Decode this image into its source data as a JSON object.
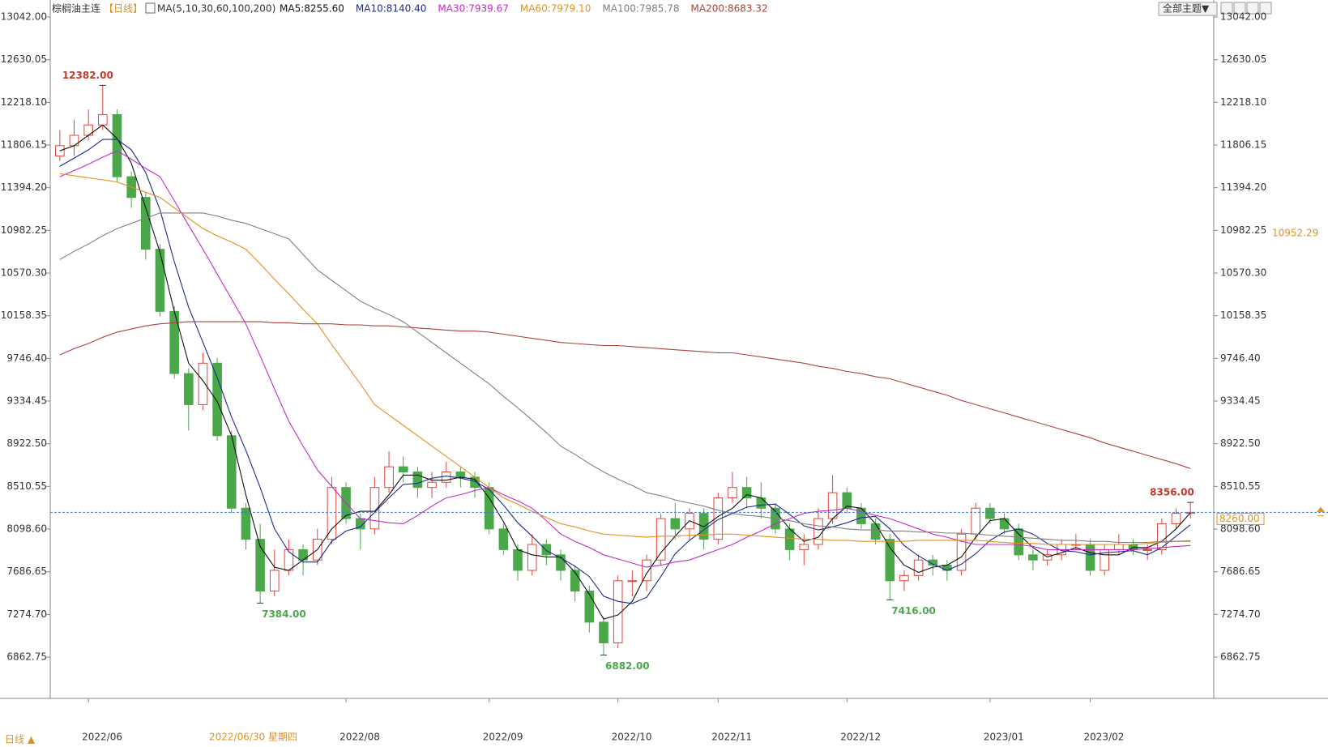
{
  "chart_data": {
    "type": "candlestick",
    "title": "棕榈油主连",
    "period": "【日线】",
    "indicator": "MA(5,10,30,60,100,200)",
    "categories": [
      null,
      null,
      "2022/06",
      null,
      null,
      null,
      null,
      null,
      null,
      null,
      null,
      null,
      null,
      null,
      null,
      null,
      null,
      null,
      null,
      null,
      "2022/08",
      null,
      null,
      null,
      null,
      null,
      null,
      null,
      null,
      null,
      "2022/09",
      null,
      null,
      null,
      null,
      null,
      null,
      null,
      null,
      "2022/10",
      null,
      null,
      null,
      null,
      null,
      null,
      "2022/11",
      null,
      null,
      null,
      null,
      null,
      null,
      null,
      null,
      "2022/12",
      null,
      null,
      null,
      null,
      null,
      null,
      null,
      null,
      null,
      "2023/01",
      null,
      null,
      null,
      null,
      null,
      null,
      "2023/02",
      null,
      null,
      null,
      null,
      null,
      null,
      null
    ],
    "open": [
      11700,
      11800,
      11900,
      12000,
      12100,
      11500,
      11300,
      10800,
      10200,
      9600,
      9300,
      9700,
      9000,
      8300,
      8000,
      7500,
      7700,
      7900,
      7800,
      8000,
      8500,
      8200,
      8100,
      8500,
      8700,
      8650,
      8500,
      8550,
      8650,
      8600,
      8500,
      8100,
      7900,
      7700,
      7950,
      7850,
      7700,
      7500,
      7200,
      7000,
      7600,
      7600,
      7800,
      8200,
      8100,
      8250,
      8000,
      8400,
      8500,
      8400,
      8300,
      8100,
      7900,
      7950,
      8200,
      8450,
      8300,
      8150,
      8000,
      7600,
      7650,
      7800,
      7750,
      7700,
      8050,
      8300,
      8200,
      8100,
      7850,
      7800,
      7850,
      7950,
      7950,
      7700,
      7900,
      7950,
      7900,
      7900,
      8150,
      8250
    ],
    "high": [
      11950,
      12050,
      12150,
      12382,
      12150,
      11550,
      11350,
      10850,
      10250,
      9650,
      9800,
      9750,
      9050,
      8350,
      8150,
      7900,
      8000,
      7950,
      8100,
      8600,
      8550,
      8250,
      8600,
      8850,
      8800,
      8700,
      8650,
      8750,
      8700,
      8650,
      8550,
      8150,
      7950,
      8050,
      8000,
      7900,
      7750,
      7550,
      7250,
      7650,
      7700,
      7850,
      8250,
      8350,
      8300,
      8300,
      8450,
      8650,
      8600,
      8550,
      8350,
      8150,
      8050,
      8300,
      8620,
      8500,
      8350,
      8200,
      8050,
      7700,
      7850,
      7850,
      7800,
      8100,
      8350,
      8350,
      8250,
      8150,
      7900,
      7900,
      8000,
      8050,
      8000,
      7950,
      8050,
      8000,
      7950,
      8200,
      8300,
      8356
    ],
    "low": [
      11650,
      11700,
      11850,
      11950,
      11450,
      11200,
      10700,
      10150,
      9550,
      9050,
      9250,
      8950,
      8250,
      7900,
      7384,
      7450,
      7650,
      7650,
      7750,
      7950,
      8150,
      7900,
      8050,
      8450,
      8550,
      8400,
      8400,
      8500,
      8500,
      8400,
      8050,
      7850,
      7600,
      7650,
      7750,
      7600,
      7400,
      7100,
      6882,
      6950,
      7450,
      7500,
      7750,
      8000,
      8000,
      7900,
      7950,
      8350,
      8300,
      8200,
      8050,
      7800,
      7750,
      7900,
      8150,
      8250,
      8100,
      7950,
      7416,
      7500,
      7600,
      7650,
      7600,
      7650,
      8000,
      8150,
      8050,
      7800,
      7700,
      7750,
      7800,
      7900,
      7650,
      7650,
      7850,
      7850,
      7800,
      7850,
      8100,
      8200
    ],
    "close": [
      11800,
      11900,
      12000,
      12100,
      11500,
      11300,
      10800,
      10200,
      9600,
      9300,
      9700,
      9000,
      8300,
      8000,
      7500,
      7700,
      7900,
      7800,
      8000,
      8500,
      8200,
      8100,
      8500,
      8700,
      8650,
      8500,
      8550,
      8650,
      8600,
      8500,
      8100,
      7900,
      7700,
      7950,
      7850,
      7700,
      7500,
      7200,
      7000,
      7600,
      7600,
      7800,
      8200,
      8100,
      8250,
      8000,
      8400,
      8500,
      8400,
      8300,
      8100,
      7900,
      7950,
      8200,
      8450,
      8300,
      8150,
      8000,
      7600,
      7650,
      7800,
      7750,
      7700,
      8050,
      8300,
      8200,
      8100,
      7850,
      7800,
      7850,
      7950,
      7950,
      7700,
      7900,
      7950,
      7900,
      7900,
      8150,
      8250,
      8260
    ],
    "up_color": "#e0443a",
    "down_color": "#4aa84a",
    "series": [
      {
        "name": "MA5:8255.60",
        "color": "#111111",
        "values": [
          11750,
          11800,
          11900,
          12000,
          11870,
          11630,
          11200,
          10770,
          10200,
          9700,
          9530,
          9330,
          9000,
          8430,
          7930,
          7730,
          7700,
          7800,
          7900,
          8100,
          8230,
          8270,
          8270,
          8430,
          8620,
          8620,
          8570,
          8570,
          8600,
          8580,
          8400,
          8170,
          7900,
          7850,
          7830,
          7830,
          7680,
          7470,
          7230,
          7270,
          7400,
          7670,
          7870,
          8030,
          8180,
          8120,
          8220,
          8300,
          8430,
          8400,
          8270,
          8100,
          7980,
          8020,
          8200,
          8320,
          8300,
          8150,
          7920,
          7750,
          7680,
          7730,
          7750,
          7830,
          8020,
          8180,
          8200,
          8050,
          7920,
          7830,
          7870,
          7920,
          7870,
          7850,
          7850,
          7920,
          7920,
          7980,
          8100,
          8256
        ]
      },
      {
        "name": "MA10:8140.40",
        "color": "#1c2a8c",
        "values": [
          11600,
          11680,
          11760,
          11860,
          11860,
          11760,
          11540,
          11180,
          10680,
          10240,
          9900,
          9560,
          9180,
          8860,
          8500,
          8100,
          7880,
          7780,
          7780,
          7980,
          8080,
          8120,
          8260,
          8400,
          8530,
          8540,
          8590,
          8610,
          8590,
          8560,
          8480,
          8330,
          8160,
          8030,
          7890,
          7820,
          7740,
          7640,
          7450,
          7400,
          7380,
          7440,
          7640,
          7860,
          7990,
          8090,
          8190,
          8250,
          8310,
          8330,
          8340,
          8240,
          8130,
          8090,
          8120,
          8160,
          8210,
          8220,
          8100,
          7940,
          7840,
          7760,
          7700,
          7760,
          7860,
          7990,
          8070,
          8100,
          8050,
          7960,
          7890,
          7880,
          7850,
          7870,
          7880,
          7890,
          7850,
          7920,
          8030,
          8140
        ]
      },
      {
        "name": "MA30:7939.67",
        "color": "#c42bc4",
        "values": [
          11500,
          11560,
          11620,
          11690,
          11750,
          11670,
          11580,
          11500,
          11270,
          11030,
          10800,
          10560,
          10320,
          10080,
          9770,
          9450,
          9140,
          8900,
          8670,
          8510,
          8350,
          8200,
          8180,
          8160,
          8150,
          8230,
          8320,
          8400,
          8430,
          8470,
          8500,
          8430,
          8370,
          8300,
          8180,
          8050,
          7980,
          7920,
          7850,
          7810,
          7770,
          7730,
          7750,
          7780,
          7800,
          7850,
          7900,
          7950,
          8020,
          8080,
          8150,
          8200,
          8250,
          8270,
          8280,
          8300,
          8270,
          8230,
          8200,
          8150,
          8100,
          8050,
          8020,
          7980,
          7950,
          7950,
          7950,
          7950,
          7930,
          7900,
          7900,
          7900,
          7900,
          7900,
          7900,
          7900,
          7910,
          7920,
          7930,
          7940
        ]
      },
      {
        "name": "MA60:7979.10",
        "color": "#e0901f",
        "values": [
          11530,
          11510,
          11490,
          11470,
          11450,
          11400,
          11350,
          11300,
          11200,
          11100,
          11000,
          10930,
          10870,
          10800,
          10660,
          10510,
          10370,
          10220,
          10080,
          9880,
          9690,
          9500,
          9300,
          9200,
          9100,
          9000,
          8900,
          8800,
          8700,
          8600,
          8500,
          8400,
          8340,
          8270,
          8210,
          8150,
          8120,
          8080,
          8050,
          8040,
          8030,
          8020,
          8030,
          8030,
          8040,
          8040,
          8050,
          8050,
          8040,
          8030,
          8020,
          8010,
          8000,
          8000,
          7990,
          7990,
          7980,
          7980,
          7980,
          7980,
          7990,
          7990,
          7990,
          7990,
          7990,
          7980,
          7970,
          7960,
          7960,
          7950,
          7950,
          7950,
          7950,
          7950,
          7950,
          7950,
          7960,
          7970,
          7980,
          7980
        ]
      },
      {
        "name": "MA100:7985.78",
        "color": "#808080",
        "values": [
          10700,
          10780,
          10850,
          10930,
          11000,
          11050,
          11100,
          11150,
          11150,
          11150,
          11150,
          11120,
          11080,
          11050,
          11000,
          10950,
          10900,
          10750,
          10600,
          10500,
          10400,
          10300,
          10230,
          10170,
          10100,
          10000,
          9900,
          9800,
          9700,
          9600,
          9500,
          9380,
          9270,
          9150,
          9030,
          8900,
          8820,
          8730,
          8650,
          8580,
          8520,
          8450,
          8420,
          8380,
          8350,
          8320,
          8280,
          8250,
          8230,
          8220,
          8200,
          8180,
          8150,
          8130,
          8120,
          8100,
          8090,
          8090,
          8080,
          8080,
          8070,
          8070,
          8060,
          8060,
          8050,
          8040,
          8030,
          8020,
          8010,
          8000,
          7990,
          7990,
          7980,
          7980,
          7970,
          7970,
          7970,
          7980,
          7980,
          7986
        ]
      },
      {
        "name": "MA200:8683.32",
        "color": "#a8443c",
        "values": [
          9780,
          9840,
          9890,
          9950,
          10000,
          10030,
          10060,
          10080,
          10090,
          10100,
          10100,
          10100,
          10100,
          10100,
          10100,
          10090,
          10090,
          10080,
          10080,
          10080,
          10070,
          10070,
          10060,
          10060,
          10050,
          10040,
          10030,
          10020,
          10010,
          10010,
          10000,
          9980,
          9960,
          9940,
          9920,
          9900,
          9890,
          9880,
          9870,
          9870,
          9860,
          9850,
          9840,
          9830,
          9820,
          9810,
          9800,
          9800,
          9780,
          9760,
          9740,
          9720,
          9700,
          9670,
          9650,
          9620,
          9600,
          9570,
          9550,
          9510,
          9470,
          9430,
          9390,
          9340,
          9300,
          9260,
          9220,
          9180,
          9140,
          9100,
          9060,
          9020,
          8980,
          8930,
          8890,
          8850,
          8810,
          8770,
          8730,
          8683
        ]
      }
    ],
    "ylim": [
      6464,
      13042
    ],
    "yticks": [
      {
        "value": 13042,
        "label": "13042.00"
      },
      {
        "value": 12630.05,
        "label": "12630.05"
      },
      {
        "value": 12218.1,
        "label": "12218.10"
      },
      {
        "value": 11806.15,
        "label": "11806.15"
      },
      {
        "value": 11394.2,
        "label": "11394.20"
      },
      {
        "value": 10982.25,
        "label": "10982.25"
      },
      {
        "value": 10570.3,
        "label": "10570.30"
      },
      {
        "value": 10158.35,
        "label": "10158.35"
      },
      {
        "value": 9746.4,
        "label": "9746.40"
      },
      {
        "value": 9334.45,
        "label": "9334.45"
      },
      {
        "value": 8922.5,
        "label": "8922.50"
      },
      {
        "value": 8510.55,
        "label": "8510.55"
      },
      {
        "value": 8098.6,
        "label": "8098.60"
      },
      {
        "value": 7686.65,
        "label": "7686.65"
      },
      {
        "value": 7274.7,
        "label": "7274.70"
      },
      {
        "value": 6862.75,
        "label": "6862.75"
      }
    ],
    "annotations": [
      {
        "kind": "high",
        "value": 12382,
        "label": "12382.00"
      },
      {
        "kind": "low",
        "value": 7384,
        "label": "7384.00"
      },
      {
        "kind": "low",
        "value": 6882,
        "label": "6882.00"
      },
      {
        "kind": "low",
        "value": 7416,
        "label": "7416.00"
      },
      {
        "kind": "high",
        "value": 8356,
        "label": "8356.00"
      }
    ],
    "last_price": {
      "value": 8260,
      "label": "8260.00"
    },
    "crosshair": {
      "date_label": "2022/06/30 星期四",
      "price": 10952.29,
      "price_label": "10952.29"
    },
    "theme_button": "全部主题▼",
    "footer": "日线 ▲"
  }
}
